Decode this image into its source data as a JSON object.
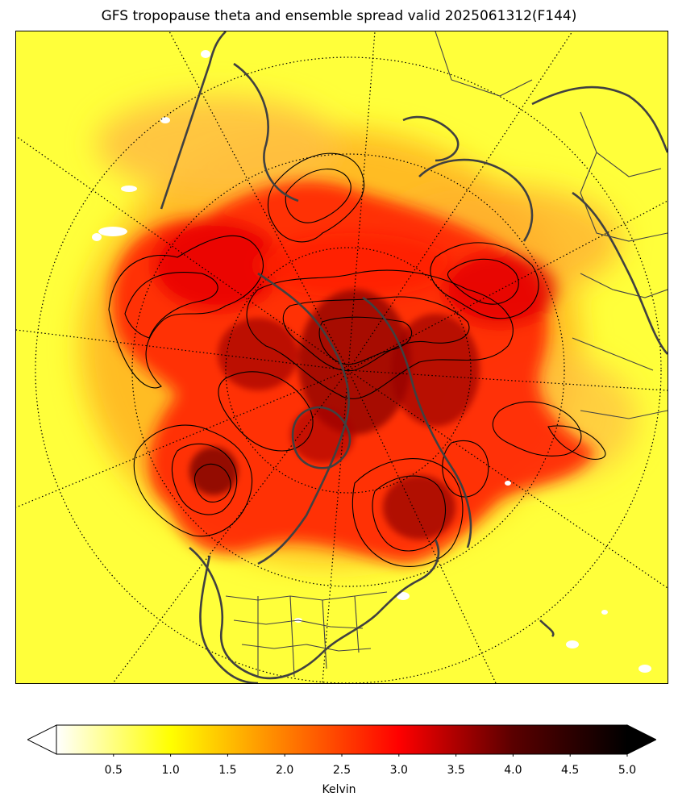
{
  "title": "GFS tropopause theta and ensemble spread valid 2025061312(F144)",
  "colorbar": {
    "label": "Kelvin",
    "colormap": "hot_r",
    "range": [
      0.0,
      5.0
    ],
    "extend": "both",
    "ticks": [
      "0.5",
      "1.0",
      "1.5",
      "2.0",
      "2.5",
      "3.0",
      "3.5",
      "4.0",
      "4.5",
      "5.0"
    ],
    "colors": [
      "#ffffff",
      "#ffff00",
      "#ff7f00",
      "#ff0000",
      "#5a0000",
      "#000000"
    ]
  },
  "map": {
    "projection": "north-polar-stereographic",
    "shaded_field": "tropopause theta ensemble spread",
    "contour_field": "tropopause theta",
    "contour_color": "#000000",
    "coastline_color": "#404040",
    "gridline_style": "dotted"
  }
}
